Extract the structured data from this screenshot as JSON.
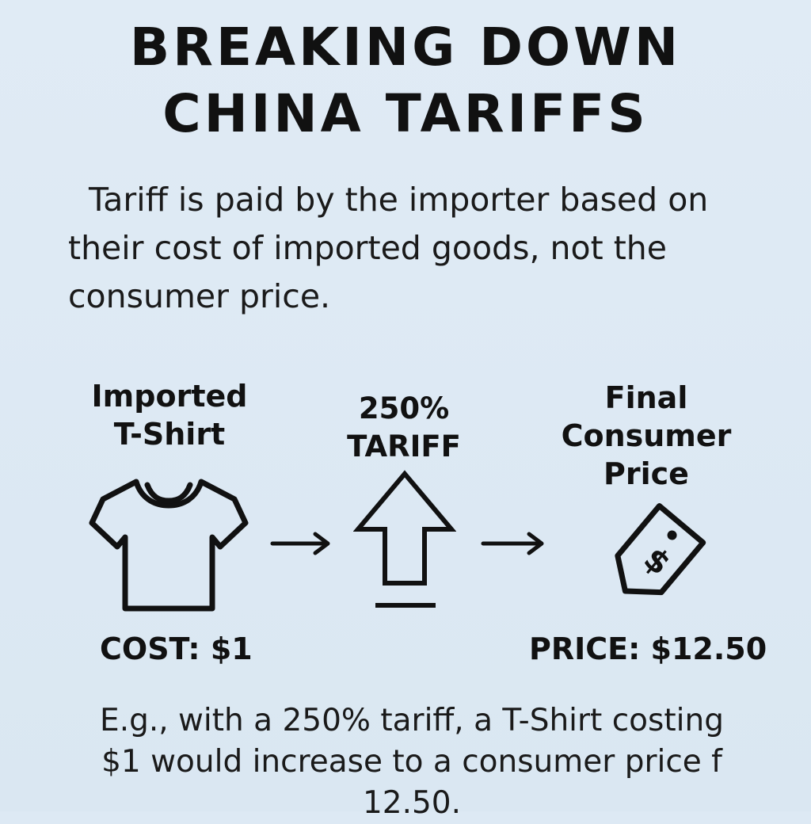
{
  "title": {
    "line1": "BREAKING DOWN",
    "line2": "CHINA TARIFFS"
  },
  "intro": {
    "line1": "Tariff is paid by the importer based on",
    "line2": "their cost of imported goods, not the",
    "line3": "consumer price."
  },
  "steps": [
    {
      "label_lines": [
        "Imported",
        "T-Shirt"
      ],
      "icon": "t-shirt-icon",
      "value": "COST: $1"
    },
    {
      "label_lines": [
        "250%",
        "TARIFF"
      ],
      "icon": "up-arrow-icon"
    },
    {
      "label_lines": [
        "Final",
        "Consumer",
        "Price"
      ],
      "icon": "price-tag-icon",
      "value": "PRICE: $12.50"
    }
  ],
  "connectors": [
    "right-arrow-icon",
    "right-arrow-icon"
  ],
  "example": {
    "line1": "E.g., with a 250% tariff, a T-Shirt costing",
    "line2": "$1 would increase to a consumer price f 12.50."
  },
  "colors": {
    "background": "#dde9f4",
    "ink": "#111111"
  }
}
